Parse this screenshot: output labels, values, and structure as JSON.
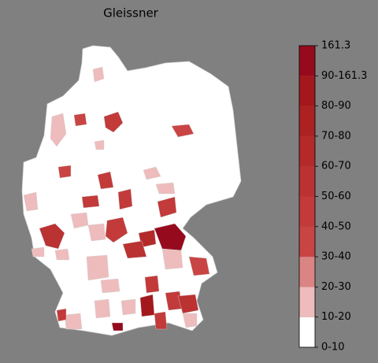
{
  "map": {
    "title": "Gleissner",
    "colorbar": {
      "ticks": [
        "0-10",
        "10-20",
        "20-30",
        "30-40",
        "40-50",
        "50-60",
        "60-70",
        "70-80",
        "80-90",
        "90-161.3",
        "161.3"
      ],
      "colors": [
        "#ffffff",
        "#eebcbc",
        "#db8484",
        "#c94444",
        "#c23a3a",
        "#bb3232",
        "#b42a2a",
        "#ac2222",
        "#a3181c",
        "#960a1e"
      ]
    }
  }
}
